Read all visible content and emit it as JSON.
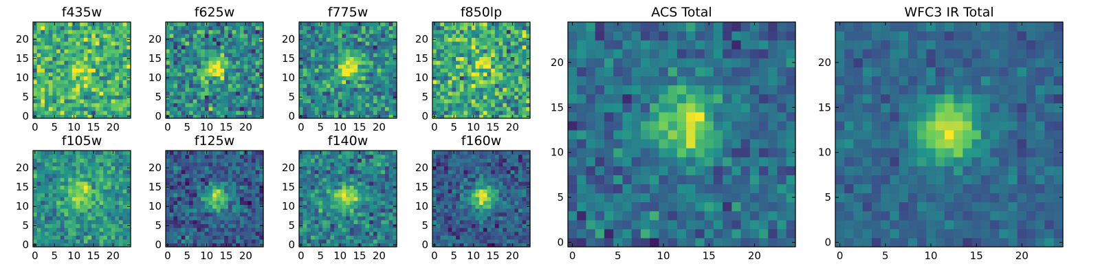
{
  "figure": {
    "description": "Grid of astronomical image cutouts in several HST filters plus ACS and WFC3 IR totals",
    "colormap": "viridis",
    "colormap_stops": [
      "#440154",
      "#3b528b",
      "#21918c",
      "#5ec962",
      "#fde725"
    ]
  },
  "chart_data": [
    {
      "type": "heatmap",
      "title": "f435w",
      "grid_size": 25,
      "xlim": [
        -0.5,
        24.5
      ],
      "ylim": [
        -0.5,
        24.5
      ],
      "xticks": [
        "0",
        "5",
        "10",
        "15",
        "20"
      ],
      "yticks": [
        "0",
        "5",
        "10",
        "15",
        "20"
      ],
      "source_center": [
        12,
        12.5
      ],
      "source_sigma": 2.2,
      "source_amplitude": 0.25,
      "background": 0.75,
      "noise": 0.22,
      "seed": 11
    },
    {
      "type": "heatmap",
      "title": "f625w",
      "grid_size": 25,
      "xlim": [
        -0.5,
        24.5
      ],
      "ylim": [
        -0.5,
        24.5
      ],
      "xticks": [
        "0",
        "5",
        "10",
        "15",
        "20"
      ],
      "yticks": [
        "0",
        "5",
        "10",
        "15",
        "20"
      ],
      "source_center": [
        12,
        12.5
      ],
      "source_sigma": 2.2,
      "source_amplitude": 0.5,
      "background": 0.55,
      "noise": 0.22,
      "seed": 23
    },
    {
      "type": "heatmap",
      "title": "f775w",
      "grid_size": 25,
      "xlim": [
        -0.5,
        24.5
      ],
      "ylim": [
        -0.5,
        24.5
      ],
      "xticks": [
        "0",
        "5",
        "10",
        "15",
        "20"
      ],
      "yticks": [
        "0",
        "5",
        "10",
        "15",
        "20"
      ],
      "source_center": [
        12.5,
        13
      ],
      "source_sigma": 2.4,
      "source_amplitude": 0.5,
      "background": 0.55,
      "noise": 0.2,
      "seed": 37
    },
    {
      "type": "heatmap",
      "title": "f850lp",
      "grid_size": 25,
      "xlim": [
        -0.5,
        24.5
      ],
      "ylim": [
        -0.5,
        24.5
      ],
      "xticks": [
        "0",
        "5",
        "10",
        "15",
        "20"
      ],
      "yticks": [
        "0",
        "5",
        "10",
        "15",
        "20"
      ],
      "source_center": [
        12,
        12.5
      ],
      "source_sigma": 2.2,
      "source_amplitude": 0.3,
      "background": 0.7,
      "noise": 0.24,
      "seed": 41
    },
    {
      "type": "heatmap",
      "title": "f105w",
      "grid_size": 25,
      "xlim": [
        -0.5,
        24.5
      ],
      "ylim": [
        -0.5,
        24.5
      ],
      "xticks": [
        "0",
        "5",
        "10",
        "15",
        "20"
      ],
      "yticks": [
        "0",
        "5",
        "10",
        "15",
        "20"
      ],
      "source_center": [
        12,
        13
      ],
      "source_sigma": 2.6,
      "source_amplitude": 0.4,
      "background": 0.6,
      "noise": 0.16,
      "seed": 53
    },
    {
      "type": "heatmap",
      "title": "f125w",
      "grid_size": 25,
      "xlim": [
        -0.5,
        24.5
      ],
      "ylim": [
        -0.5,
        24.5
      ],
      "xticks": [
        "0",
        "5",
        "10",
        "15",
        "20"
      ],
      "yticks": [
        "0",
        "5",
        "10",
        "15",
        "20"
      ],
      "source_center": [
        12.5,
        12.5
      ],
      "source_sigma": 2.2,
      "source_amplitude": 0.6,
      "background": 0.35,
      "noise": 0.15,
      "seed": 67
    },
    {
      "type": "heatmap",
      "title": "f140w",
      "grid_size": 25,
      "xlim": [
        -0.5,
        24.5
      ],
      "ylim": [
        -0.5,
        24.5
      ],
      "xticks": [
        "0",
        "5",
        "10",
        "15",
        "20"
      ],
      "yticks": [
        "0",
        "5",
        "10",
        "15",
        "20"
      ],
      "source_center": [
        11.5,
        12.5
      ],
      "source_sigma": 2.4,
      "source_amplitude": 0.45,
      "background": 0.5,
      "noise": 0.17,
      "seed": 71
    },
    {
      "type": "heatmap",
      "title": "f160w",
      "grid_size": 25,
      "xlim": [
        -0.5,
        24.5
      ],
      "ylim": [
        -0.5,
        24.5
      ],
      "xticks": [
        "0",
        "5",
        "10",
        "15",
        "20"
      ],
      "yticks": [
        "0",
        "5",
        "10",
        "15",
        "20"
      ],
      "source_center": [
        12.5,
        12.5
      ],
      "source_sigma": 2.4,
      "source_amplitude": 0.6,
      "background": 0.35,
      "noise": 0.14,
      "seed": 83
    },
    {
      "type": "heatmap",
      "title": "ACS Total",
      "grid_size": 25,
      "xlim": [
        -0.5,
        24.5
      ],
      "ylim": [
        -0.5,
        24.5
      ],
      "xticks": [
        "0",
        "5",
        "10",
        "15",
        "20"
      ],
      "yticks": [
        "0",
        "5",
        "10",
        "15",
        "20"
      ],
      "source_center": [
        12.5,
        13
      ],
      "source_sigma": 2.4,
      "source_amplitude": 0.55,
      "background": 0.42,
      "noise": 0.14,
      "seed": 97
    },
    {
      "type": "heatmap",
      "title": "WFC3 IR Total",
      "grid_size": 25,
      "xlim": [
        -0.5,
        24.5
      ],
      "ylim": [
        -0.5,
        24.5
      ],
      "xticks": [
        "0",
        "5",
        "10",
        "15",
        "20"
      ],
      "yticks": [
        "0",
        "5",
        "10",
        "15",
        "20"
      ],
      "source_center": [
        12,
        12.5
      ],
      "source_sigma": 2.4,
      "source_amplitude": 0.62,
      "background": 0.4,
      "noise": 0.09,
      "seed": 101
    }
  ]
}
